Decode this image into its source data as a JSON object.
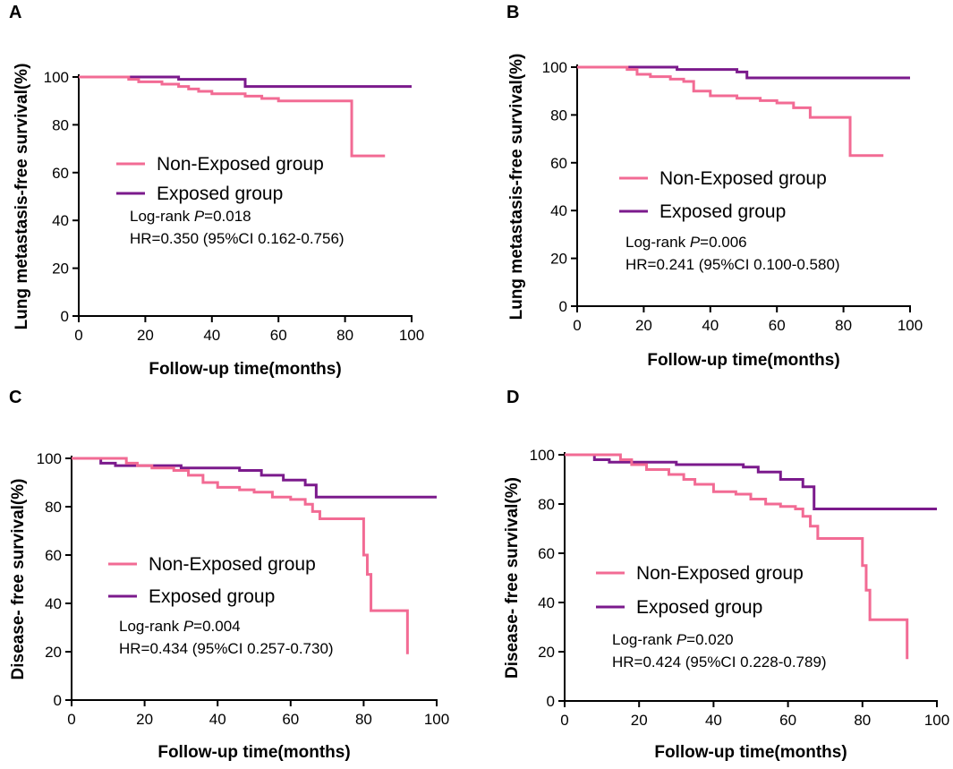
{
  "chart_data": [
    {
      "panel_label": "A",
      "type": "line",
      "subtype": "kaplan-meier",
      "xlabel": "Follow-up time(months)",
      "ylabel": "Lung metastasis-free survival(%)",
      "xlim": [
        0,
        100
      ],
      "ylim": [
        0,
        100
      ],
      "xticks": [
        "0",
        "20",
        "40",
        "60",
        "80",
        "100"
      ],
      "yticks": [
        "0",
        "20",
        "40",
        "60",
        "80",
        "100"
      ],
      "legend_position": "center-left",
      "series": [
        {
          "name": "Non-Exposed group",
          "color": "#f26b94",
          "x": [
            0,
            15,
            18,
            25,
            30,
            33,
            36,
            40,
            50,
            55,
            60,
            82,
            92
          ],
          "y": [
            100,
            99,
            98,
            97,
            96,
            95,
            94,
            93,
            92,
            91,
            90,
            67,
            67
          ]
        },
        {
          "name": "Exposed group",
          "color": "#7b1a8c",
          "x": [
            0,
            30,
            50,
            100
          ],
          "y": [
            100,
            99,
            96,
            96
          ]
        }
      ],
      "stats": {
        "logrank_prefix": "Log-rank ",
        "p_symbol": "P",
        "p_value": "=0.018",
        "hr": "HR=0.350 (95%CI 0.162-0.756)"
      }
    },
    {
      "panel_label": "B",
      "type": "line",
      "subtype": "kaplan-meier",
      "xlabel": "Follow-up time(months)",
      "ylabel": "Lung metastasis-free survival(%)",
      "xlim": [
        0,
        100
      ],
      "ylim": [
        0,
        100
      ],
      "xticks": [
        "0",
        "20",
        "40",
        "60",
        "80",
        "100"
      ],
      "yticks": [
        "0",
        "20",
        "40",
        "60",
        "80",
        "100"
      ],
      "legend_position": "center",
      "series": [
        {
          "name": "Non-Exposed group",
          "color": "#f26b94",
          "x": [
            0,
            15,
            18,
            22,
            28,
            32,
            35,
            40,
            48,
            55,
            60,
            65,
            70,
            82,
            92
          ],
          "y": [
            100,
            99,
            97,
            96,
            95,
            94,
            90,
            88,
            87,
            86,
            85,
            83,
            79,
            63,
            63
          ]
        },
        {
          "name": "Exposed group",
          "color": "#7b1a8c",
          "x": [
            0,
            30,
            48,
            51,
            100
          ],
          "y": [
            100,
            99,
            98,
            95.5,
            95.5
          ]
        }
      ],
      "stats": {
        "logrank_prefix": "Log-rank ",
        "p_symbol": "P",
        "p_value": "=0.006",
        "hr": "HR=0.241 (95%CI 0.100-0.580)"
      }
    },
    {
      "panel_label": "C",
      "type": "line",
      "subtype": "kaplan-meier",
      "xlabel": "Follow-up time(months)",
      "ylabel": "Disease- free survival(%)",
      "xlim": [
        0,
        100
      ],
      "ylim": [
        0,
        100
      ],
      "xticks": [
        "0",
        "20",
        "40",
        "60",
        "80",
        "100"
      ],
      "yticks": [
        "0",
        "20",
        "40",
        "60",
        "80",
        "100"
      ],
      "legend_position": "center-left",
      "series": [
        {
          "name": "Non-Exposed group",
          "color": "#f26b94",
          "x": [
            0,
            15,
            18,
            22,
            28,
            32,
            36,
            40,
            46,
            50,
            55,
            60,
            64,
            66,
            68,
            80,
            81,
            82,
            92
          ],
          "y": [
            100,
            98,
            97,
            96,
            95,
            93,
            90,
            88,
            87,
            86,
            84,
            83,
            81,
            78,
            75,
            60,
            52,
            37,
            19
          ]
        },
        {
          "name": "Exposed group",
          "color": "#7b1a8c",
          "x": [
            0,
            8,
            12,
            30,
            46,
            52,
            58,
            64,
            67,
            100
          ],
          "y": [
            100,
            98,
            97,
            96,
            95,
            93,
            91,
            89,
            84,
            84
          ]
        }
      ],
      "stats": {
        "logrank_prefix": "Log-rank ",
        "p_symbol": "P",
        "p_value": "=0.004",
        "hr": "HR=0.434 (95%CI 0.257-0.730)"
      }
    },
    {
      "panel_label": "D",
      "type": "line",
      "subtype": "kaplan-meier",
      "xlabel": "Follow-up time(months)",
      "ylabel": "Disease- free survival(%)",
      "xlim": [
        0,
        100
      ],
      "ylim": [
        0,
        100
      ],
      "xticks": [
        "0",
        "20",
        "40",
        "60",
        "80",
        "100"
      ],
      "yticks": [
        "0",
        "20",
        "40",
        "60",
        "80",
        "100"
      ],
      "legend_position": "center",
      "series": [
        {
          "name": "Non-Exposed group",
          "color": "#f26b94",
          "x": [
            0,
            15,
            18,
            22,
            28,
            32,
            35,
            40,
            46,
            50,
            54,
            58,
            62,
            64,
            66,
            68,
            80,
            81,
            82,
            92
          ],
          "y": [
            100,
            98,
            96,
            94,
            92,
            90,
            88,
            85,
            84,
            82,
            80,
            79,
            78,
            75,
            71,
            66,
            55,
            45,
            33,
            17
          ]
        },
        {
          "name": "Exposed group",
          "color": "#7b1a8c",
          "x": [
            0,
            8,
            12,
            30,
            48,
            52,
            58,
            64,
            67,
            100
          ],
          "y": [
            100,
            98,
            97,
            96,
            95,
            93,
            90,
            87,
            78,
            78
          ]
        }
      ],
      "stats": {
        "logrank_prefix": "Log-rank ",
        "p_symbol": "P",
        "p_value": "=0.020",
        "hr": "HR=0.424 (95%CI 0.228-0.789)"
      }
    }
  ]
}
